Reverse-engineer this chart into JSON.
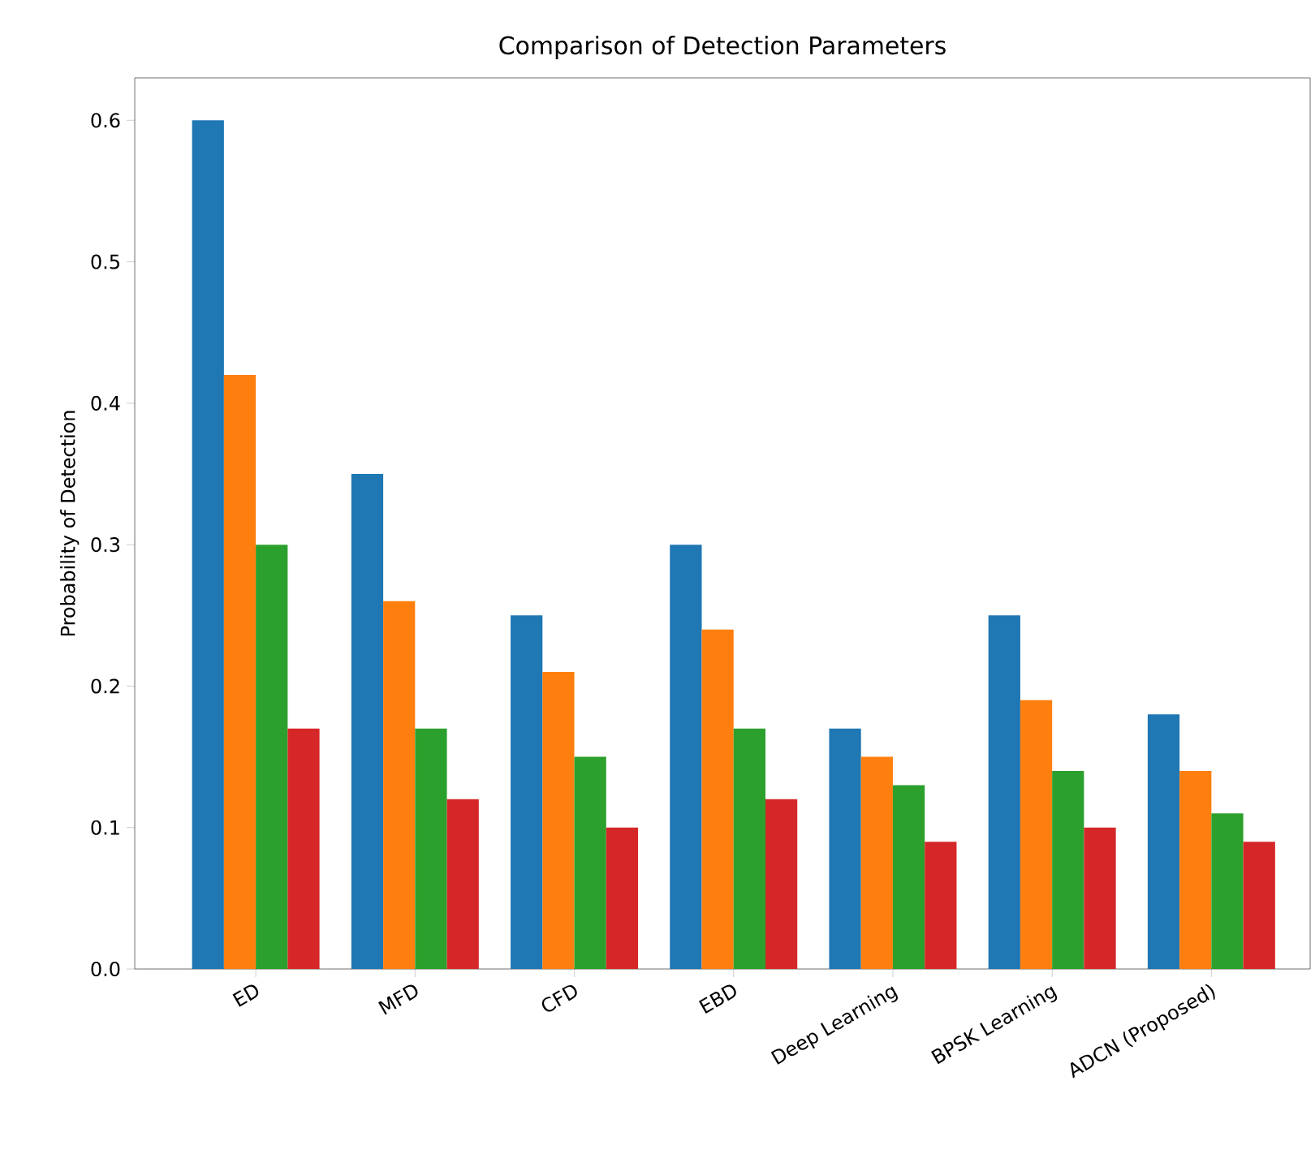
{
  "chart_data": {
    "type": "bar",
    "title": "Comparison of Detection Parameters",
    "ylabel": "Probability of Detection",
    "categories": [
      "ED",
      "MFD",
      "CFD",
      "EBD",
      "Deep Learning",
      "BPSK Learning",
      "ADCN (Proposed)"
    ],
    "series": [
      {
        "color": "#1f77b4",
        "values": [
          0.6,
          0.35,
          0.25,
          0.3,
          0.17,
          0.25,
          0.18
        ]
      },
      {
        "color": "#ff7f0e",
        "values": [
          0.42,
          0.26,
          0.21,
          0.24,
          0.15,
          0.19,
          0.14
        ]
      },
      {
        "color": "#2ca02c",
        "values": [
          0.3,
          0.17,
          0.15,
          0.17,
          0.13,
          0.14,
          0.11
        ]
      },
      {
        "color": "#d62728",
        "values": [
          0.17,
          0.12,
          0.1,
          0.12,
          0.09,
          0.1,
          0.09
        ]
      }
    ],
    "ylim": [
      0,
      0.63
    ],
    "yticks": [
      {
        "value": 0,
        "label": "0.0"
      },
      0.1,
      0.2,
      0.3,
      0.4,
      0.5,
      0.6
    ],
    "grid": false
  }
}
